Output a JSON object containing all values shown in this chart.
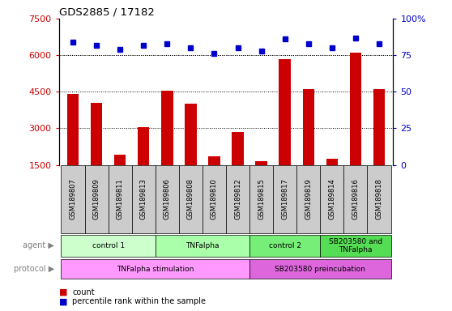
{
  "title": "GDS2885 / 17182",
  "samples": [
    "GSM189807",
    "GSM189809",
    "GSM189811",
    "GSM189813",
    "GSM189806",
    "GSM189808",
    "GSM189810",
    "GSM189812",
    "GSM189815",
    "GSM189817",
    "GSM189819",
    "GSM189814",
    "GSM189816",
    "GSM189818"
  ],
  "counts": [
    4400,
    4050,
    1900,
    3050,
    4550,
    4000,
    1850,
    2850,
    1650,
    5850,
    4600,
    1750,
    6100,
    4600
  ],
  "percentiles": [
    84,
    82,
    79,
    82,
    83,
    80,
    76,
    80,
    78,
    86,
    83,
    80,
    87,
    83
  ],
  "count_min": 1500,
  "count_max": 7500,
  "percentile_min": 0,
  "percentile_max": 100,
  "bar_color": "#cc0000",
  "dot_color": "#0000cc",
  "agent_groups": [
    {
      "label": "control 1",
      "start": 0,
      "end": 3,
      "color": "#ccffcc"
    },
    {
      "label": "TNFalpha",
      "start": 4,
      "end": 7,
      "color": "#aaffaa"
    },
    {
      "label": "control 2",
      "start": 8,
      "end": 10,
      "color": "#77ee77"
    },
    {
      "label": "SB203580 and\nTNFalpha",
      "start": 11,
      "end": 13,
      "color": "#55dd55"
    }
  ],
  "protocol_groups": [
    {
      "label": "TNFalpha stimulation",
      "start": 0,
      "end": 7,
      "color": "#ff99ff"
    },
    {
      "label": "SB203580 preincubation",
      "start": 8,
      "end": 13,
      "color": "#dd66dd"
    }
  ],
  "yticks_left": [
    1500,
    3000,
    4500,
    6000,
    7500
  ],
  "yticks_right": [
    0,
    25,
    50,
    75,
    100
  ],
  "legend_count_label": "count",
  "legend_pct_label": "percentile rank within the sample",
  "agent_label": "agent",
  "protocol_label": "protocol",
  "sample_bg_color": "#cccccc"
}
